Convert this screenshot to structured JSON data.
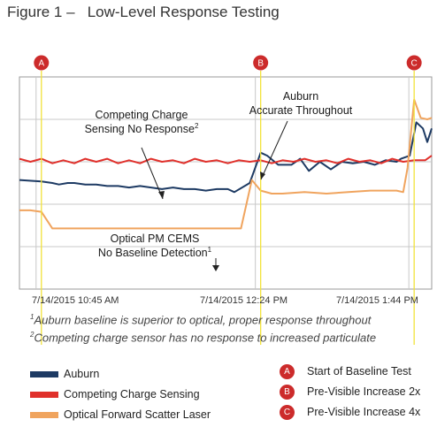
{
  "title": "Figure 1 –   Low-Level Response Testing",
  "chart_data": {
    "type": "line",
    "title": "Low-Level Response Testing",
    "x_ticks": [
      "7/14/2015 10:45 AM",
      "7/14/2015 12:24 PM",
      "7/14/2015 1:44 PM"
    ],
    "x_start": "7/14/2015 10:45 AM",
    "y_axis_labels": "none",
    "grid": true,
    "series": [
      {
        "name": "Auburn",
        "color": "#1d3a63",
        "points": [
          [
            -10,
            72
          ],
          [
            0,
            71
          ],
          [
            5,
            70
          ],
          [
            8,
            69
          ],
          [
            12,
            70
          ],
          [
            15,
            70
          ],
          [
            20,
            69
          ],
          [
            25,
            69
          ],
          [
            30,
            68
          ],
          [
            35,
            68
          ],
          [
            40,
            67
          ],
          [
            45,
            68
          ],
          [
            50,
            67
          ],
          [
            55,
            66
          ],
          [
            60,
            67
          ],
          [
            65,
            66
          ],
          [
            70,
            66
          ],
          [
            75,
            65
          ],
          [
            80,
            66
          ],
          [
            85,
            66
          ],
          [
            88,
            64
          ],
          [
            95,
            70
          ],
          [
            100,
            90
          ],
          [
            103,
            88
          ],
          [
            108,
            82
          ],
          [
            114,
            82
          ],
          [
            118,
            86
          ],
          [
            122,
            78
          ],
          [
            127,
            84
          ],
          [
            132,
            79
          ],
          [
            137,
            84
          ],
          [
            142,
            83
          ],
          [
            147,
            84
          ],
          [
            152,
            82
          ],
          [
            157,
            85
          ],
          [
            162,
            84
          ],
          [
            164,
            86
          ],
          [
            168,
            88
          ],
          [
            171,
            110
          ],
          [
            174,
            106
          ],
          [
            176,
            97
          ],
          [
            178,
            106
          ]
        ]
      },
      {
        "name": "Competing Charge Sensing",
        "color": "#e0302b",
        "points": [
          [
            -10,
            86
          ],
          [
            -5,
            84
          ],
          [
            0,
            86
          ],
          [
            5,
            83
          ],
          [
            10,
            85
          ],
          [
            15,
            83
          ],
          [
            20,
            86
          ],
          [
            25,
            84
          ],
          [
            30,
            86
          ],
          [
            35,
            83
          ],
          [
            40,
            85
          ],
          [
            45,
            83
          ],
          [
            50,
            86
          ],
          [
            55,
            84
          ],
          [
            60,
            85
          ],
          [
            65,
            83
          ],
          [
            70,
            86
          ],
          [
            75,
            84
          ],
          [
            80,
            85
          ],
          [
            85,
            83
          ],
          [
            90,
            85
          ],
          [
            95,
            84
          ],
          [
            100,
            85
          ],
          [
            105,
            83
          ],
          [
            110,
            85
          ],
          [
            115,
            84
          ],
          [
            120,
            86
          ],
          [
            125,
            84
          ],
          [
            130,
            85
          ],
          [
            135,
            83
          ],
          [
            140,
            86
          ],
          [
            145,
            84
          ],
          [
            150,
            85
          ],
          [
            155,
            83
          ],
          [
            160,
            86
          ],
          [
            165,
            84
          ],
          [
            170,
            85
          ],
          [
            175,
            85
          ],
          [
            178,
            88
          ]
        ]
      },
      {
        "name": "Optical Forward Scatter Laser",
        "color": "#f0a45e",
        "points": [
          [
            -10,
            52
          ],
          [
            -5,
            52
          ],
          [
            0,
            51
          ],
          [
            5,
            40
          ],
          [
            10,
            40
          ],
          [
            30,
            40
          ],
          [
            60,
            40
          ],
          [
            88,
            40
          ],
          [
            91,
            40
          ],
          [
            96,
            72
          ],
          [
            100,
            65
          ],
          [
            105,
            63
          ],
          [
            110,
            63
          ],
          [
            120,
            64
          ],
          [
            130,
            63
          ],
          [
            140,
            64
          ],
          [
            150,
            65
          ],
          [
            162,
            65
          ],
          [
            165,
            64
          ],
          [
            167,
            80
          ],
          [
            170,
            125
          ],
          [
            173,
            113
          ],
          [
            176,
            112
          ],
          [
            178,
            113
          ]
        ]
      }
    ],
    "annotations": [
      {
        "text_lines": [
          "Competing Charge",
          "Sensing No Response"
        ],
        "superscript": "2"
      },
      {
        "text_lines": [
          "Auburn",
          "Accurate Throughout"
        ],
        "superscript": ""
      },
      {
        "text_lines": [
          "Optical PM CEMS",
          "No Baseline Detection"
        ],
        "superscript": "1"
      }
    ],
    "event_markers": [
      {
        "label": "A",
        "x": 0,
        "description": "Start of Baseline Test"
      },
      {
        "label": "B",
        "x": 100,
        "description": "Pre-Visible Increase 2x"
      },
      {
        "label": "C",
        "x": 170,
        "description": "Pre-Visible Increase 4x"
      }
    ]
  },
  "notes": [
    {
      "sup": "1",
      "text": "Auburn baseline is superior to optical, proper response throughout"
    },
    {
      "sup": "2",
      "text": "Competing charge sensor has no response to increased particulate"
    }
  ],
  "legend": [
    {
      "name": "Auburn",
      "color": "#1d3a63"
    },
    {
      "name": "Competing Charge Sensing",
      "color": "#e0302b"
    },
    {
      "name": "Optical Forward Scatter Laser",
      "color": "#f0a45e"
    }
  ]
}
